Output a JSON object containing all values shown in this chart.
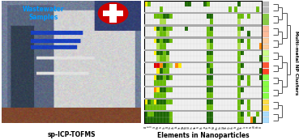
{
  "title_left": "sp-ICP-TOFMS",
  "title_right": "Elements in Nanoparticles",
  "label_top_left": "Wastewater\nSamples",
  "label_right": "Multi-metal NP Clusters",
  "bg_color": "#ffffff",
  "element_labels": [
    "Al",
    "Ti",
    "V",
    "Cr",
    "Mn",
    "Fe",
    "Co",
    "Ni",
    "Cu",
    "Zn",
    "As",
    "Se",
    "Mo",
    "Ag",
    "Cd",
    "Sn",
    "Sb",
    "Te",
    "Ba",
    "La",
    "Ce",
    "Pr",
    "Nd",
    "Sm",
    "Eu",
    "Gd",
    "Tb",
    "Dy",
    "Ho",
    "Er",
    "Tm",
    "Yb",
    "Lu",
    "Hf",
    "Ta",
    "W",
    "Pb",
    "Bi"
  ],
  "swiss_red": "#cc0000",
  "dend_color": "#555555",
  "cluster_sep_color": "#999999",
  "side_colors": [
    "#aaaaaa",
    "#aaaaaa",
    "#88cc44",
    "#88cc44",
    "#ffaa88",
    "#ffbbaa",
    "#ffccbb",
    "#ffddcc",
    "#ccff88",
    "#ddffaa",
    "#ff6644",
    "#ff4422",
    "#88ff44",
    "#aaddff",
    "#88ff44",
    "#ccff88",
    "#ffdd44",
    "#aaddff",
    "#88cc44",
    "#aaddff"
  ]
}
